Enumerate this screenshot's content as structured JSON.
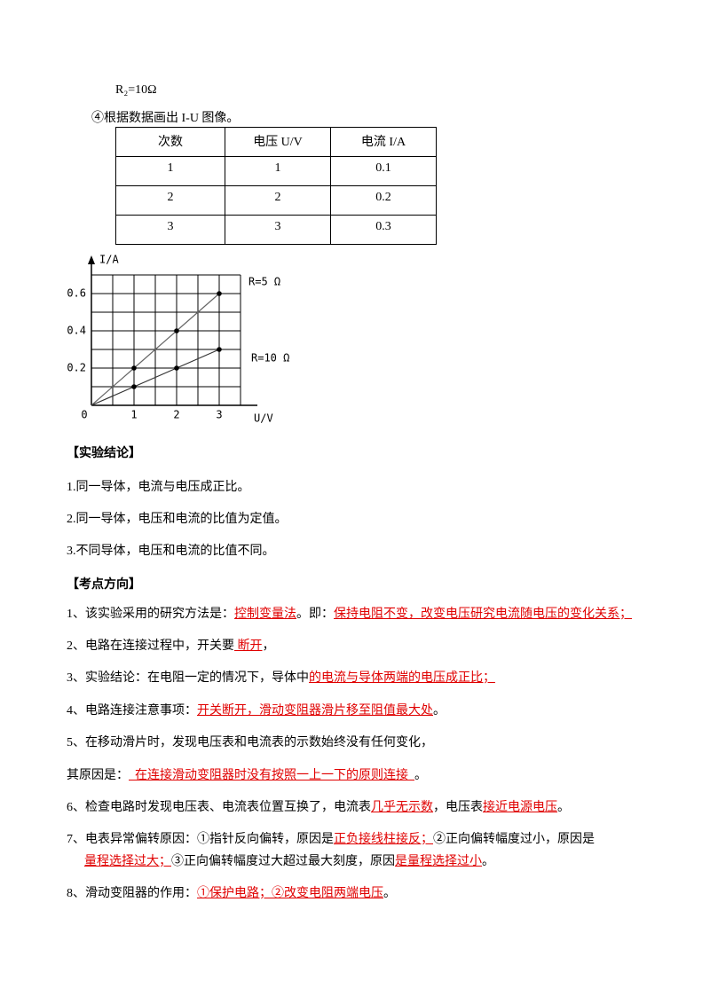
{
  "top_note": "R₂=10Ω",
  "step": "④根据数据画出 I-U 图像。",
  "table": {
    "header": [
      "次数",
      "电压 U/V",
      "电流 I/A"
    ],
    "rows": [
      [
        "1",
        "1",
        "0.1"
      ],
      [
        "2",
        "2",
        "0.2"
      ],
      [
        "3",
        "3",
        "0.3"
      ]
    ]
  },
  "chart_data": {
    "type": "line",
    "x_label": "U/V",
    "y_label": "I/A",
    "x": [
      0,
      1,
      2,
      3
    ],
    "series": [
      {
        "name": "R=5 Ω",
        "color": "#666666",
        "values": [
          0,
          0.2,
          0.4,
          0.6
        ],
        "markers": [
          false,
          true,
          true,
          true
        ]
      },
      {
        "name": "R=10 Ω",
        "color": "#333333",
        "values": [
          0,
          0.1,
          0.2,
          0.3
        ],
        "markers": [
          false,
          true,
          true,
          true
        ]
      }
    ],
    "xlim": [
      0,
      3.5
    ],
    "ylim": [
      0,
      0.7
    ],
    "xticks": [
      0,
      1,
      2,
      3
    ],
    "yticks": [
      0.2,
      0.4,
      0.6
    ],
    "xgrid": [
      0.5,
      1,
      1.5,
      2,
      2.5,
      3,
      3.5
    ],
    "ygrid": [
      0.1,
      0.2,
      0.3,
      0.4,
      0.5,
      0.6,
      0.7
    ]
  },
  "conclusion": {
    "heading": "【实验结论】",
    "items": [
      "1.同一导体，电流与电压成正比。",
      "2.同一导体，电压和电流的比值为定值。",
      "3.不同导体，电压和电流的比值不同。"
    ]
  },
  "key_points": {
    "heading": "【考点方向】",
    "items": [
      {
        "parts": [
          {
            "text": "1、该实验采用的研究方法是：",
            "answer": false
          },
          {
            "text": "控制变量法",
            "answer": true
          },
          {
            "text": "。即：",
            "answer": false
          },
          {
            "text": "保持电阻不变，改变电压研究电流随电压的变化关系；",
            "answer": true
          }
        ]
      },
      {
        "parts": [
          {
            "text": "2、电路在连接过程中，开关要",
            "answer": false
          },
          {
            "text": " 断开",
            "answer": true
          },
          {
            "text": "，",
            "answer": false
          }
        ]
      },
      {
        "parts": [
          {
            "text": "3、实验结论：在电阻一定的情况下，导体中",
            "answer": false
          },
          {
            "text": "的电流与导体两端的电压成正比；",
            "answer": true
          }
        ]
      },
      {
        "parts": [
          {
            "text": "4、电路连接注意事项：",
            "answer": false
          },
          {
            "text": "开关断开，滑动变阻器滑片移至阻值最大处",
            "answer": true
          },
          {
            "text": "。",
            "answer": false
          }
        ]
      },
      {
        "parts": [
          {
            "text": "5、在移动滑片时，发现电压表和电流表的示数始终没有任何变化，",
            "answer": false
          }
        ]
      },
      {
        "parts": [
          {
            "text": "其原因是：",
            "answer": false
          },
          {
            "text": "  在连接滑动变阻器时没有按照一上一下的原则连接  ",
            "answer": true
          },
          {
            "text": "。",
            "answer": false
          }
        ]
      },
      {
        "parts": [
          {
            "text": "6、检查电路时发现电压表、电流表位置互换了，电流表",
            "answer": false
          },
          {
            "text": "几乎无示数",
            "answer": true
          },
          {
            "text": "，电压表",
            "answer": false
          },
          {
            "text": "接近电源电压",
            "answer": true
          },
          {
            "text": "。",
            "answer": false
          }
        ]
      },
      {
        "parts": [
          {
            "text": "7、电表异常偏转原因：①指针反向偏转，原因是",
            "answer": false
          },
          {
            "text": "正负接线柱接反；",
            "answer": true
          },
          {
            "text": "②正向偏转幅度过小，原因是",
            "answer": false
          },
          {
            "text": "量程选择过大；",
            "answer": true
          },
          {
            "text": "③正向偏转幅度过大超过最大刻度，原因",
            "answer": false
          },
          {
            "text": "是量程选择过小",
            "answer": true
          },
          {
            "text": "。",
            "answer": false
          }
        ]
      },
      {
        "parts": [
          {
            "text": "8、滑动变阻器的作用：",
            "answer": false
          },
          {
            "text": "①保护电路；②改变电阻两端电压",
            "answer": true
          },
          {
            "text": "。",
            "answer": false
          }
        ]
      }
    ]
  }
}
